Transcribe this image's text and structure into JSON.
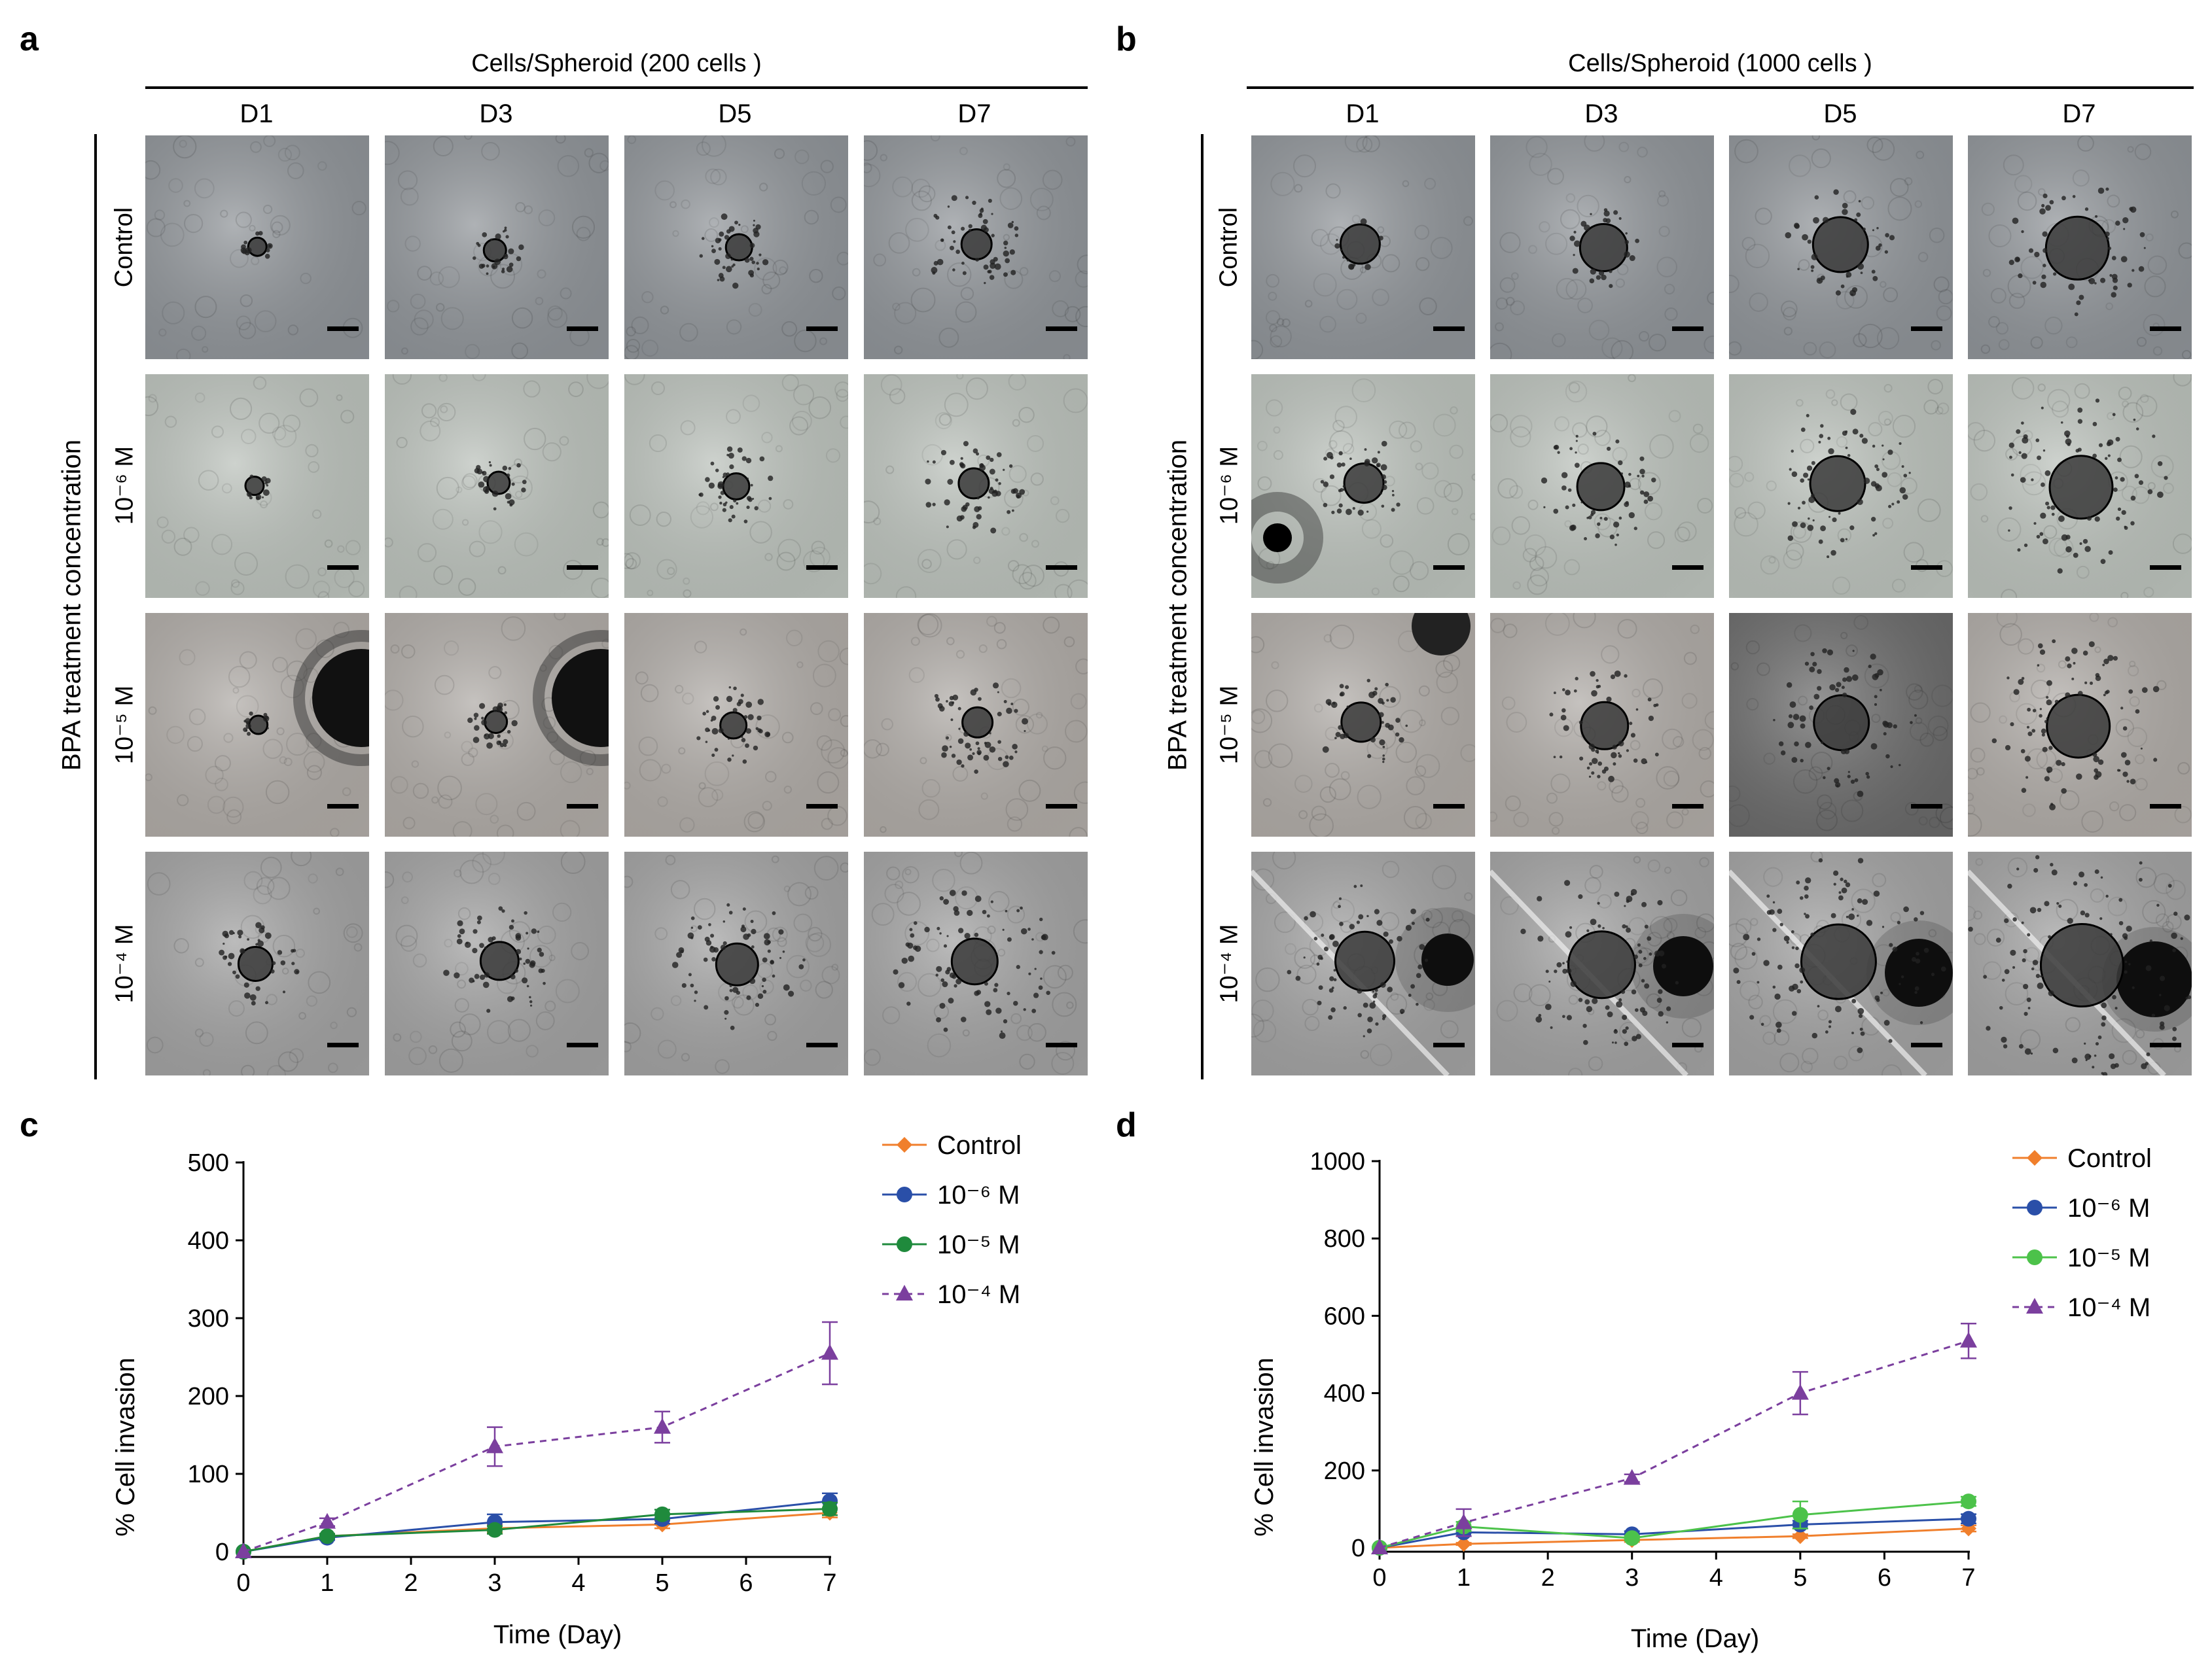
{
  "panels": {
    "a": {
      "label": "a",
      "header": "Cells/Spheroid (200 cells )",
      "columns": [
        "D1",
        "D3",
        "D5",
        "D7"
      ],
      "y_axis_label": "BPA treatment concentration",
      "rows": [
        "Control",
        "10⁻⁶ M",
        "10⁻⁵ M",
        "10⁻⁴ M"
      ]
    },
    "b": {
      "label": "b",
      "header": "Cells/Spheroid (1000 cells )",
      "columns": [
        "D1",
        "D3",
        "D5",
        "D7"
      ],
      "y_axis_label": "BPA treatment concentration",
      "rows": [
        "Control",
        "10⁻⁶ M",
        "10⁻⁵ M",
        "10⁻⁴ M"
      ]
    },
    "c": {
      "label": "c"
    },
    "d": {
      "label": "d"
    }
  },
  "colors": {
    "control": "#f07f2c",
    "m6": "#2a4fa8",
    "m5": "#1f8a3c",
    "m5_d": "#4cc24a",
    "m4": "#7b3f9e",
    "axis": "#000000"
  },
  "chart_data": [
    {
      "panel": "c",
      "type": "line",
      "xlabel": "Time (Day)",
      "ylabel": "% Cell invasion",
      "xlim": [
        0,
        7
      ],
      "ylim": [
        0,
        500
      ],
      "xticks": [
        0,
        1,
        2,
        3,
        4,
        5,
        6,
        7
      ],
      "yticks": [
        0,
        100,
        200,
        300,
        400,
        500
      ],
      "x": [
        0,
        1,
        3,
        5,
        7
      ],
      "series": [
        {
          "name": "Control",
          "marker": "diamond",
          "dashed": false,
          "color": "#f07f2c",
          "values": [
            0,
            20,
            30,
            35,
            50
          ],
          "errors": [
            0,
            3,
            5,
            5,
            6
          ]
        },
        {
          "name": "10⁻⁶ M",
          "marker": "circle",
          "dashed": false,
          "color": "#2a4fa8",
          "values": [
            0,
            18,
            38,
            42,
            65
          ],
          "errors": [
            0,
            3,
            10,
            6,
            10
          ]
        },
        {
          "name": "10⁻⁵ M",
          "marker": "circle",
          "dashed": false,
          "color": "#1f8a3c",
          "values": [
            0,
            20,
            28,
            48,
            55
          ],
          "errors": [
            0,
            3,
            5,
            6,
            8
          ]
        },
        {
          "name": "10⁻⁴ M",
          "marker": "triangle",
          "dashed": true,
          "color": "#7b3f9e",
          "values": [
            0,
            38,
            135,
            160,
            255
          ],
          "errors": [
            0,
            5,
            25,
            20,
            40
          ]
        }
      ]
    },
    {
      "panel": "d",
      "type": "line",
      "xlabel": "Time (Day)",
      "ylabel": "% Cell invasion",
      "xlim": [
        0,
        7
      ],
      "ylim": [
        0,
        1000
      ],
      "xticks": [
        0,
        1,
        2,
        3,
        4,
        5,
        6,
        7
      ],
      "yticks": [
        0,
        200,
        400,
        600,
        800,
        1000
      ],
      "x": [
        0,
        1,
        3,
        5,
        7
      ],
      "series": [
        {
          "name": "Control",
          "marker": "diamond",
          "dashed": false,
          "color": "#f07f2c",
          "values": [
            0,
            10,
            20,
            30,
            50
          ],
          "errors": [
            0,
            3,
            5,
            5,
            8
          ]
        },
        {
          "name": "10⁻⁶ M",
          "marker": "circle",
          "dashed": false,
          "color": "#2a4fa8",
          "values": [
            0,
            40,
            35,
            60,
            75
          ],
          "errors": [
            0,
            10,
            8,
            10,
            12
          ]
        },
        {
          "name": "10⁻⁵ M",
          "marker": "circle",
          "dashed": false,
          "color": "#4cc24a",
          "values": [
            0,
            55,
            25,
            85,
            120
          ],
          "errors": [
            0,
            12,
            6,
            35,
            12
          ]
        },
        {
          "name": "10⁻⁴ M",
          "marker": "triangle",
          "dashed": true,
          "color": "#7b3f9e",
          "values": [
            0,
            65,
            180,
            400,
            535
          ],
          "errors": [
            0,
            35,
            10,
            55,
            45
          ]
        }
      ]
    }
  ]
}
